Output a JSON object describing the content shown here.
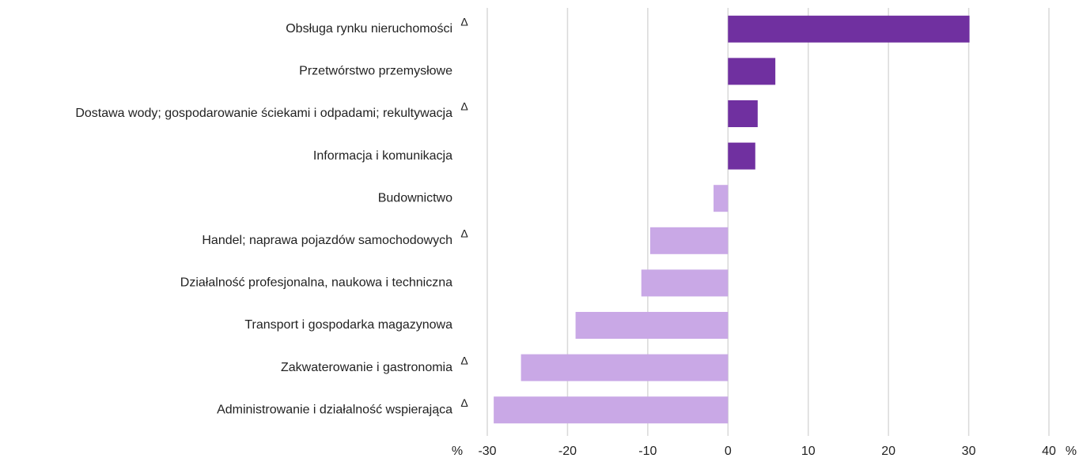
{
  "chart_data": {
    "type": "barh",
    "categories": [
      "Obsługa rynku nieruchomości",
      "Przetwórstwo przemysłowe",
      "Dostawa wody; gospodarowanie ściekami i odpadami; rekultywacja",
      "Informacja i komunikacja",
      "Budownictwo",
      "Handel; naprawa pojazdów samochodowych",
      "Działalność profesjonalna, naukowa i techniczna",
      "Transport i gospodarka magazynowa",
      "Zakwaterowanie i gastronomia",
      "Administrowanie i działalność wspierająca"
    ],
    "annotations": [
      "Δ",
      null,
      "Δ",
      null,
      null,
      "Δ",
      null,
      null,
      "Δ",
      "Δ"
    ],
    "values": [
      30.1,
      5.9,
      3.7,
      3.4,
      -1.8,
      -9.7,
      -10.8,
      -19.0,
      -25.8,
      -29.2
    ],
    "positive_color": "#7030a0",
    "negative_color": "#c9a8e6",
    "x_unit": "%",
    "xlim": [
      -30,
      40
    ],
    "xticks": [
      -30,
      -20,
      -10,
      0,
      10,
      20,
      30,
      40
    ],
    "grid": true
  }
}
